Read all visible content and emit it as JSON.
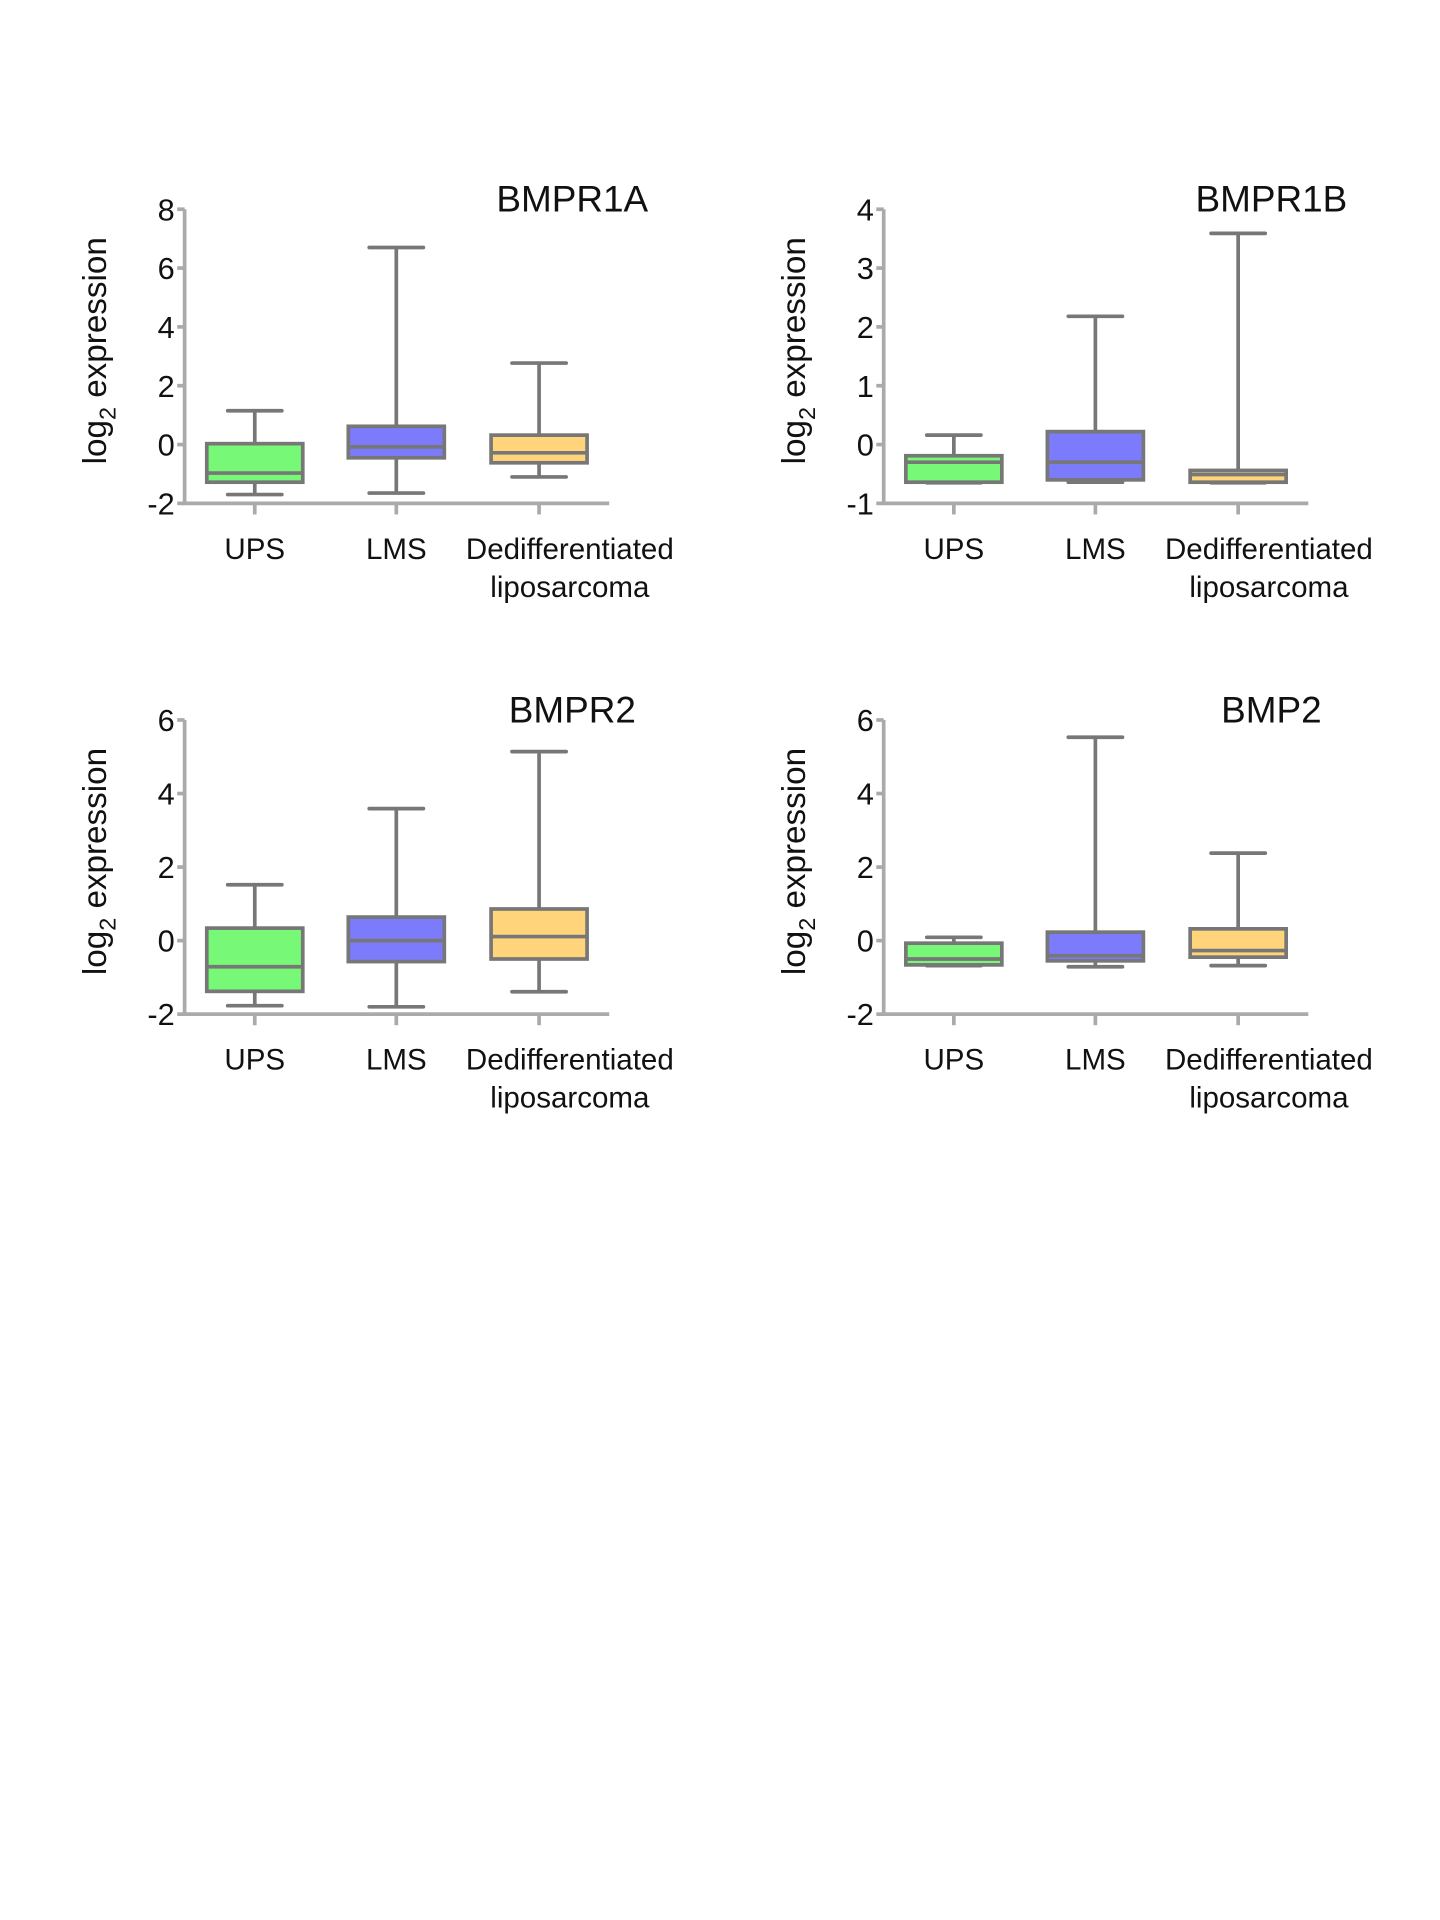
{
  "colors": {
    "UPS": "#77f877",
    "LMS": "#7b7bfb",
    "Dedifferentiated liposarcoma": "#ffd47a",
    "box_stroke": "#777777",
    "axis": "#aaaaaa"
  },
  "chart_data": [
    {
      "type": "box",
      "title": "BMPR1A",
      "ylabel": "log2 expression",
      "ylabel_main": "log",
      "ylabel_sub": "2",
      "ylabel_rest": " expression",
      "categories": [
        "UPS",
        "LMS",
        "Dedifferentiated liposarcoma"
      ],
      "category_lines": [
        [
          "UPS"
        ],
        [
          "LMS"
        ],
        [
          "Dedifferentiated",
          "liposarcoma"
        ]
      ],
      "ylim": [
        -2,
        8
      ],
      "yticks": [
        -2,
        0,
        2,
        4,
        6,
        8
      ],
      "boxes": [
        {
          "min": -1.7,
          "q1": -1.28,
          "median": -0.97,
          "q3": 0.03,
          "max": 1.15
        },
        {
          "min": -1.65,
          "q1": -0.45,
          "median": -0.08,
          "q3": 0.62,
          "max": 6.7
        },
        {
          "min": -1.1,
          "q1": -0.62,
          "median": -0.28,
          "q3": 0.32,
          "max": 2.77
        }
      ]
    },
    {
      "type": "box",
      "title": "BMPR1B",
      "ylabel": "log2 expression",
      "ylabel_main": "log",
      "ylabel_sub": "2",
      "ylabel_rest": " expression",
      "categories": [
        "UPS",
        "LMS",
        "Dedifferentiated liposarcoma"
      ],
      "category_lines": [
        [
          "UPS"
        ],
        [
          "LMS"
        ],
        [
          "Dedifferentiated",
          "liposarcoma"
        ]
      ],
      "ylim": [
        -1,
        4
      ],
      "yticks": [
        -1,
        0,
        1,
        2,
        3,
        4
      ],
      "boxes": [
        {
          "min": -0.65,
          "q1": -0.64,
          "median": -0.3,
          "q3": -0.19,
          "max": 0.16
        },
        {
          "min": -0.64,
          "q1": -0.6,
          "median": -0.3,
          "q3": 0.22,
          "max": 2.18
        },
        {
          "min": -0.65,
          "q1": -0.64,
          "median": -0.51,
          "q3": -0.44,
          "max": 3.59
        }
      ]
    },
    {
      "type": "box",
      "title": "BMPR2",
      "ylabel": "log2 expression",
      "ylabel_main": "log",
      "ylabel_sub": "2",
      "ylabel_rest": " expression",
      "categories": [
        "UPS",
        "LMS",
        "Dedifferentiated liposarcoma"
      ],
      "category_lines": [
        [
          "UPS"
        ],
        [
          "LMS"
        ],
        [
          "Dedifferentiated",
          "liposarcoma"
        ]
      ],
      "ylim": [
        -2,
        6
      ],
      "yticks": [
        -2,
        0,
        2,
        4,
        6
      ],
      "boxes": [
        {
          "min": -1.77,
          "q1": -1.38,
          "median": -0.71,
          "q3": 0.34,
          "max": 1.52
        },
        {
          "min": -1.8,
          "q1": -0.57,
          "median": 0.0,
          "q3": 0.64,
          "max": 3.59
        },
        {
          "min": -1.39,
          "q1": -0.5,
          "median": 0.11,
          "q3": 0.86,
          "max": 5.14
        }
      ]
    },
    {
      "type": "box",
      "title": "BMP2",
      "ylabel": "log2 expression",
      "ylabel_main": "log",
      "ylabel_sub": "2",
      "ylabel_rest": " expression",
      "categories": [
        "UPS",
        "LMS",
        "Dedifferentiated liposarcoma"
      ],
      "category_lines": [
        [
          "UPS"
        ],
        [
          "LMS"
        ],
        [
          "Dedifferentiated",
          "liposarcoma"
        ]
      ],
      "ylim": [
        -2,
        6
      ],
      "yticks": [
        -2,
        0,
        2,
        4,
        6
      ],
      "boxes": [
        {
          "min": -0.68,
          "q1": -0.66,
          "median": -0.5,
          "q3": -0.07,
          "max": 0.09
        },
        {
          "min": -0.71,
          "q1": -0.55,
          "median": -0.41,
          "q3": 0.23,
          "max": 5.53
        },
        {
          "min": -0.68,
          "q1": -0.45,
          "median": -0.27,
          "q3": 0.32,
          "max": 2.38
        }
      ]
    }
  ]
}
